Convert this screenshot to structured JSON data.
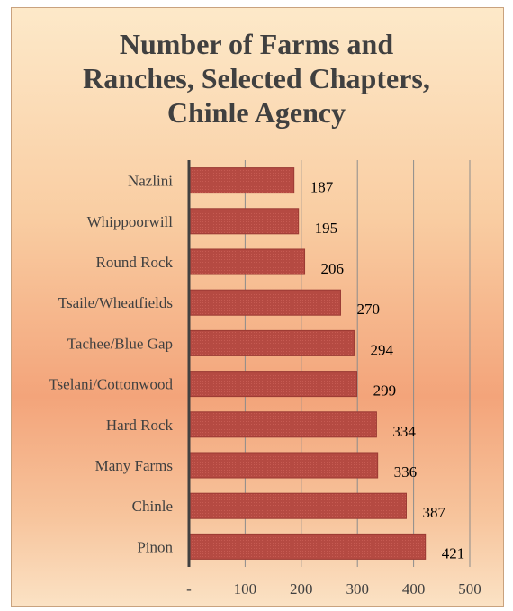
{
  "chart_data": {
    "type": "bar",
    "orientation": "horizontal",
    "title_lines": [
      "Number of Farms and",
      "Ranches, Selected Chapters,",
      "Chinle Agency"
    ],
    "categories": [
      "Nazlini",
      "Whippoorwill",
      "Round Rock",
      "Tsaile/Wheatfields",
      "Tachee/Blue Gap",
      "Tselani/Cottonwood",
      "Hard Rock",
      "Many Farms",
      "Chinle",
      "Pinon"
    ],
    "values": [
      187,
      195,
      206,
      270,
      294,
      299,
      334,
      336,
      387,
      421
    ],
    "data_labels": [
      "187",
      "195",
      "206",
      "270",
      "294",
      "299",
      "334",
      "336",
      "387",
      "421"
    ],
    "xlim": [
      0,
      500
    ],
    "x_ticks": [
      0,
      100,
      200,
      300,
      400,
      500
    ],
    "x_tick_labels": [
      "-",
      "100",
      "200",
      "300",
      "400",
      "500"
    ],
    "xlabel": "",
    "ylabel": "",
    "grid": "vertical",
    "legend": "none",
    "colors": {
      "bar": "#b54a42",
      "bar_edge": "#9b3a33",
      "gridline": "#8c8c8c",
      "axis": "#404040"
    }
  }
}
